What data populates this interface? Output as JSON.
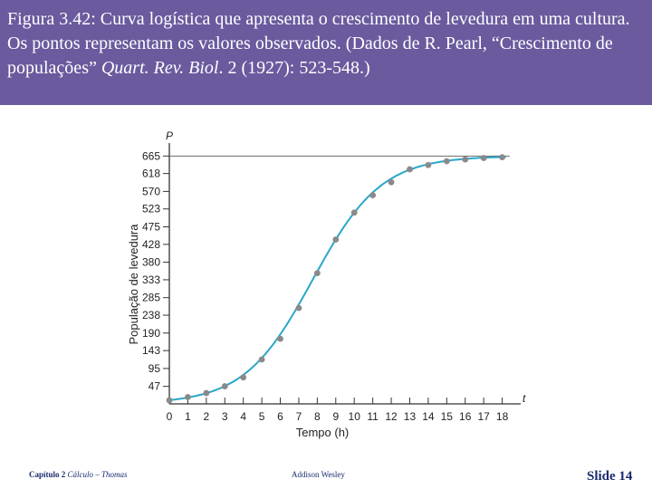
{
  "slide": {
    "caption_prefix": "Figura 3.42:  Curva logística que apresenta o crescimento de levedura em uma cultura. Os pontos representam os valores observados. (Dados de R. Pearl,  “Crescimento de populações” ",
    "caption_journal": "Quart. Rev. Biol",
    "caption_suffix": ". 2 (1927): 523-548.)",
    "footer_chapter": "Capítulo 2",
    "footer_book": "Cálculo – Thomas",
    "footer_publisher": "Addison Wesley",
    "footer_slide": "Slide 14"
  },
  "colors": {
    "header_bg": "#6b5a9e",
    "curve": "#2aa7c8",
    "points": "#8a8a8a",
    "asymptote": "#555555",
    "axis": "#333333"
  },
  "chart_data": {
    "type": "scatter",
    "title": "",
    "xlabel": "Tempo (h)",
    "ylabel": "População de levedura",
    "x_axis_letter": "t",
    "y_axis_letter": "P",
    "xlim": [
      0,
      19
    ],
    "ylim": [
      0,
      690
    ],
    "x_ticks": [
      0,
      1,
      2,
      3,
      4,
      5,
      6,
      7,
      8,
      9,
      10,
      11,
      12,
      13,
      14,
      15,
      16,
      17,
      18
    ],
    "y_ticks": [
      47,
      95,
      143,
      190,
      238,
      285,
      333,
      380,
      428,
      475,
      523,
      570,
      618,
      665
    ],
    "asymptote": 665,
    "logistic": {
      "K": 665,
      "P0": 10,
      "r": 0.54
    },
    "series": [
      {
        "name": "Valores observados",
        "x": [
          0,
          1,
          2,
          3,
          4,
          5,
          6,
          7,
          8,
          9,
          10,
          11,
          12,
          13,
          14,
          15,
          16,
          17,
          18
        ],
        "y": [
          9.6,
          18.3,
          29.0,
          47.2,
          71.1,
          119.1,
          174.6,
          257.3,
          350.7,
          441.0,
          513.3,
          559.7,
          594.8,
          629.4,
          640.8,
          651.1,
          655.9,
          659.6,
          661.8
        ]
      }
    ]
  }
}
